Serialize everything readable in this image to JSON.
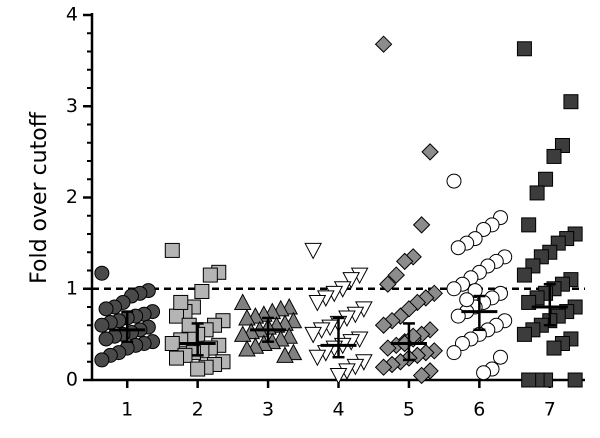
{
  "chart_data": {
    "type": "dot",
    "y_label": "Fold over cutoff",
    "categories": [
      "1",
      "2",
      "3",
      "4",
      "5",
      "6",
      "7"
    ],
    "ylim": [
      0,
      4
    ],
    "yticks": [
      0,
      1,
      2,
      3,
      4
    ],
    "y_minor_ticks": [
      0.2,
      0.4,
      0.6,
      0.8,
      1.2,
      1.4,
      1.6,
      1.8,
      2.2,
      2.4,
      2.6,
      2.8,
      3.2,
      3.4,
      3.6,
      3.8
    ],
    "reference_line": 1,
    "groups": [
      {
        "marker": "circle",
        "color": "#4a4a4a",
        "median": 0.55,
        "q1": 0.42,
        "q3": 0.75,
        "values": [
          1.17,
          0.98,
          0.95,
          0.92,
          0.85,
          0.8,
          0.78,
          0.75,
          0.72,
          0.7,
          0.68,
          0.65,
          0.63,
          0.6,
          0.58,
          0.55,
          0.52,
          0.5,
          0.48,
          0.45,
          0.42,
          0.4,
          0.38,
          0.35,
          0.3,
          0.27,
          0.22
        ]
      },
      {
        "marker": "square",
        "color": "#b4b4b4",
        "median": 0.4,
        "q1": 0.27,
        "q3": 0.62,
        "values": [
          1.42,
          1.18,
          1.15,
          0.97,
          0.8,
          0.75,
          0.7,
          0.65,
          0.6,
          0.55,
          0.5,
          0.47,
          0.44,
          0.4,
          0.38,
          0.35,
          0.32,
          0.3,
          0.27,
          0.24,
          0.2,
          0.17,
          0.14,
          0.12,
          0.6,
          0.85
        ]
      },
      {
        "marker": "triangle-up",
        "color": "#808080",
        "median": 0.55,
        "q1": 0.42,
        "q3": 0.68,
        "values": [
          0.85,
          0.8,
          0.78,
          0.75,
          0.72,
          0.7,
          0.68,
          0.65,
          0.62,
          0.6,
          0.58,
          0.55,
          0.53,
          0.5,
          0.48,
          0.45,
          0.42,
          0.4,
          0.37,
          0.34,
          0.3,
          0.27
        ]
      },
      {
        "marker": "triangle-down",
        "color": "#ffffff",
        "median": 0.38,
        "q1": 0.25,
        "q3": 0.68,
        "values": [
          1.42,
          1.15,
          1.1,
          1.0,
          0.95,
          0.9,
          0.85,
          0.78,
          0.72,
          0.68,
          0.62,
          0.58,
          0.55,
          0.5,
          0.45,
          0.42,
          0.38,
          0.35,
          0.3,
          0.25,
          0.2,
          0.15,
          0.1,
          0.05
        ]
      },
      {
        "marker": "diamond",
        "color": "#8c8c8c",
        "median": 0.4,
        "q1": 0.22,
        "q3": 0.62,
        "values": [
          3.68,
          2.5,
          1.7,
          1.35,
          1.3,
          1.15,
          1.05,
          0.95,
          0.9,
          0.85,
          0.78,
          0.7,
          0.65,
          0.6,
          0.55,
          0.5,
          0.45,
          0.42,
          0.38,
          0.35,
          0.32,
          0.3,
          0.27,
          0.24,
          0.2,
          0.17,
          0.14,
          0.1,
          0.05,
          0.48,
          0.4
        ]
      },
      {
        "marker": "circle",
        "color": "#ffffff",
        "median": 0.75,
        "q1": 0.55,
        "q3": 0.92,
        "values": [
          2.18,
          1.78,
          1.7,
          1.65,
          1.55,
          1.5,
          1.45,
          1.35,
          1.3,
          1.25,
          1.18,
          1.12,
          1.05,
          1.0,
          0.95,
          0.9,
          0.85,
          0.8,
          0.75,
          0.7,
          0.65,
          0.6,
          0.55,
          0.5,
          0.45,
          0.4,
          0.3,
          0.25,
          0.12,
          0.08,
          0.98,
          0.88
        ]
      },
      {
        "marker": "square",
        "color": "#3c3c3c",
        "median": 0.8,
        "q1": 0.6,
        "q3": 1.05,
        "values": [
          3.63,
          3.05,
          2.57,
          2.45,
          2.2,
          2.05,
          1.7,
          1.6,
          1.55,
          1.5,
          1.4,
          1.35,
          1.25,
          1.15,
          1.1,
          1.05,
          1.0,
          0.95,
          0.9,
          0.85,
          0.8,
          0.75,
          0.7,
          0.65,
          0.6,
          0.55,
          0.5,
          0.45,
          0.4,
          0.35,
          0,
          0,
          0,
          0
        ]
      }
    ]
  }
}
